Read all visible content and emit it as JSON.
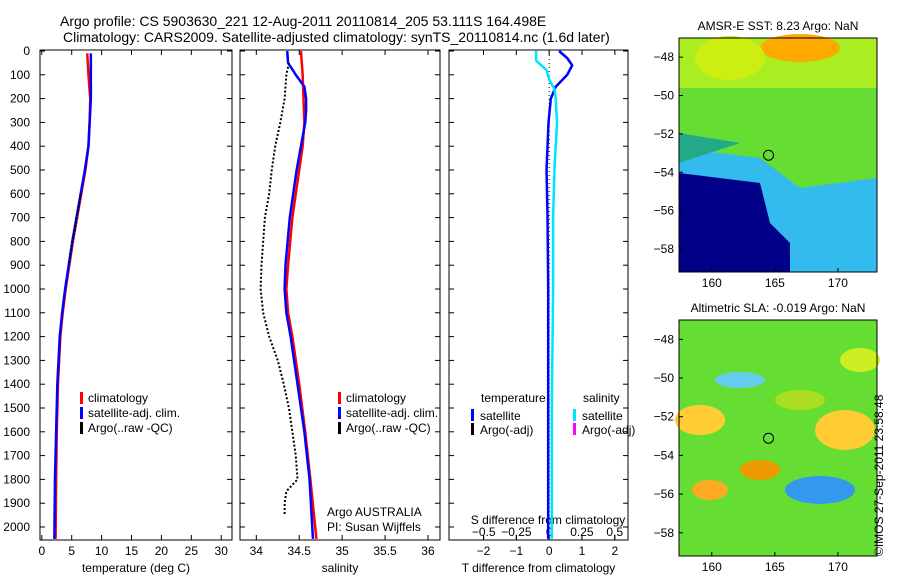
{
  "title_line1": "Argo profile: CS 5903630_221 12-Aug-2011 20110814_205 53.111S 164.498E",
  "title_line2": "Climatology: CARS2009. Satellite-adjusted climatology: synTS_20110814.nc (1.6d later)",
  "copyright": "©IMOS 27-Sep-2011 23:58:48",
  "colors": {
    "climatology": "#ff0000",
    "satellite": "#0000ff",
    "argo": "#000000",
    "sal_sat": "#00e5ff",
    "sal_argo": "#ff00ff"
  },
  "chart_data": [
    {
      "type": "line",
      "name": "temperature",
      "xlabel": "temperature (deg C)",
      "ylabel": "",
      "xlim": [
        -0.3,
        31.8
      ],
      "ylim": [
        2050,
        0
      ],
      "xticks": [
        0,
        5,
        10,
        15,
        20,
        25,
        30
      ],
      "yticks": [
        0,
        100,
        200,
        300,
        400,
        500,
        600,
        700,
        800,
        900,
        1000,
        1100,
        1200,
        1300,
        1400,
        1500,
        1600,
        1700,
        1800,
        1900,
        2000
      ],
      "legend": [
        "climatology",
        "satellite-adj. clim.",
        "Argo(..raw -QC)"
      ],
      "series": [
        {
          "name": "climatology",
          "depth": [
            10,
            100,
            200,
            300,
            400,
            500,
            600,
            700,
            800,
            900,
            1000,
            1100,
            1200,
            1300,
            1400,
            1600,
            1800,
            2050
          ],
          "values": [
            7.6,
            7.8,
            8.1,
            8.0,
            7.8,
            7.3,
            6.6,
            5.9,
            5.2,
            4.6,
            4.0,
            3.5,
            3.1,
            2.9,
            2.7,
            2.5,
            2.4,
            2.3
          ]
        },
        {
          "name": "satellite-adj. clim.",
          "depth": [
            10,
            100,
            200,
            300,
            400,
            500,
            600,
            700,
            800,
            900,
            1000,
            1100,
            1200,
            1300,
            1400,
            1600,
            1800,
            2050
          ],
          "values": [
            8.2,
            8.2,
            8.2,
            8.0,
            7.8,
            7.2,
            6.5,
            5.8,
            5.1,
            4.5,
            3.9,
            3.4,
            3.0,
            2.8,
            2.6,
            2.4,
            2.2,
            2.1
          ]
        },
        {
          "name": "Argo(..raw -QC)",
          "depth": [
            600,
            650,
            700,
            750,
            800,
            850,
            900
          ],
          "values": [
            6.5,
            6.2,
            5.8,
            5.5,
            5.1,
            4.8,
            4.5
          ]
        }
      ]
    },
    {
      "type": "line",
      "name": "salinity",
      "xlabel": "salinity",
      "xlim": [
        33.81,
        36.14
      ],
      "ylim": [
        2050,
        0
      ],
      "xticks": [
        34,
        34.5,
        35,
        35.5,
        36
      ],
      "legend": [
        "climatology",
        "satellite-adj. clim.",
        "Argo(..raw -QC)"
      ],
      "annotation": [
        "Argo AUSTRALIA",
        "PI: Susan Wijffels"
      ],
      "series": [
        {
          "name": "climatology",
          "depth": [
            0,
            100,
            200,
            300,
            400,
            500,
            700,
            900,
            1000,
            1100,
            1200,
            1400,
            1600,
            1800,
            2050
          ],
          "values": [
            34.52,
            34.54,
            34.55,
            34.56,
            34.54,
            34.5,
            34.42,
            34.37,
            34.35,
            34.37,
            34.42,
            34.5,
            34.57,
            34.63,
            34.7
          ]
        },
        {
          "name": "satellite-adj. clim.",
          "depth": [
            0,
            50,
            100,
            150,
            200,
            250,
            300,
            400,
            500,
            700,
            900,
            1000,
            1100,
            1200,
            1400,
            1600,
            1800,
            2050
          ],
          "values": [
            34.36,
            34.37,
            34.46,
            34.56,
            34.58,
            34.58,
            34.57,
            34.52,
            34.47,
            34.39,
            34.34,
            34.33,
            34.35,
            34.4,
            34.48,
            34.56,
            34.62,
            34.66
          ]
        },
        {
          "name": "Argo(..raw -QC)",
          "depth": [
            50,
            100,
            200,
            300,
            400,
            500,
            600,
            700,
            800,
            900,
            1000,
            1100,
            1200,
            1300,
            1400,
            1500,
            1600,
            1700,
            1800,
            1850,
            1900,
            1950
          ],
          "values": [
            34.38,
            34.35,
            34.33,
            34.28,
            34.22,
            34.18,
            34.15,
            34.1,
            34.08,
            34.06,
            34.05,
            34.08,
            34.15,
            34.25,
            34.32,
            34.38,
            34.42,
            34.46,
            34.48,
            34.35,
            34.33,
            34.33
          ]
        }
      ]
    },
    {
      "type": "line",
      "name": "difference",
      "xlabel": "T difference from climatology",
      "x2label": "S difference from climatology",
      "xlim": [
        -3.05,
        2.4
      ],
      "xticks": [
        -2,
        -1,
        0,
        1,
        2
      ],
      "x2ticks": [
        "-0.5",
        "-0.25",
        "0",
        "0.25",
        "0.5"
      ],
      "legend": {
        "temperature_title": "temperature",
        "salinity_title": "salinity",
        "items": [
          "satellite",
          "Argo(-adj)",
          "satellite",
          "Argo(-adj)"
        ]
      },
      "series": [
        {
          "name": "T satellite",
          "depth": [
            0,
            30,
            60,
            100,
            150,
            200,
            300,
            500,
            700,
            1000,
            1500,
            2050
          ],
          "values": [
            0.3,
            0.55,
            0.7,
            0.55,
            0.2,
            0.05,
            -0.02,
            -0.08,
            -0.05,
            -0.03,
            -0.03,
            -0.03
          ]
        },
        {
          "name": "S satellite",
          "depth": [
            0,
            40,
            80,
            120,
            160,
            200,
            300,
            500,
            700,
            1000,
            1500,
            2050
          ],
          "values": [
            -0.1,
            -0.1,
            -0.02,
            0.0,
            0.04,
            0.05,
            0.06,
            0.04,
            0.03,
            0.03,
            0.02,
            0.02
          ]
        }
      ]
    },
    {
      "type": "heatmap",
      "name": "sst_map",
      "title": "AMSR-E SST: 8.23 Argo: NaN",
      "xticks": [
        160,
        165,
        170
      ],
      "yticks": [
        -48,
        -50,
        -52,
        -54,
        -56,
        -58
      ],
      "xlim": [
        157.4,
        173.1
      ],
      "ylim": [
        -59.2,
        -47
      ]
    },
    {
      "type": "heatmap",
      "name": "sla_map",
      "title": "Altimetric SLA: -0.019 Argo: NaN",
      "xticks": [
        160,
        165,
        170
      ],
      "yticks": [
        -48,
        -50,
        -52,
        -54,
        -56,
        -58
      ],
      "xlim": [
        157.4,
        173.1
      ],
      "ylim": [
        -59.2,
        -47
      ]
    }
  ]
}
